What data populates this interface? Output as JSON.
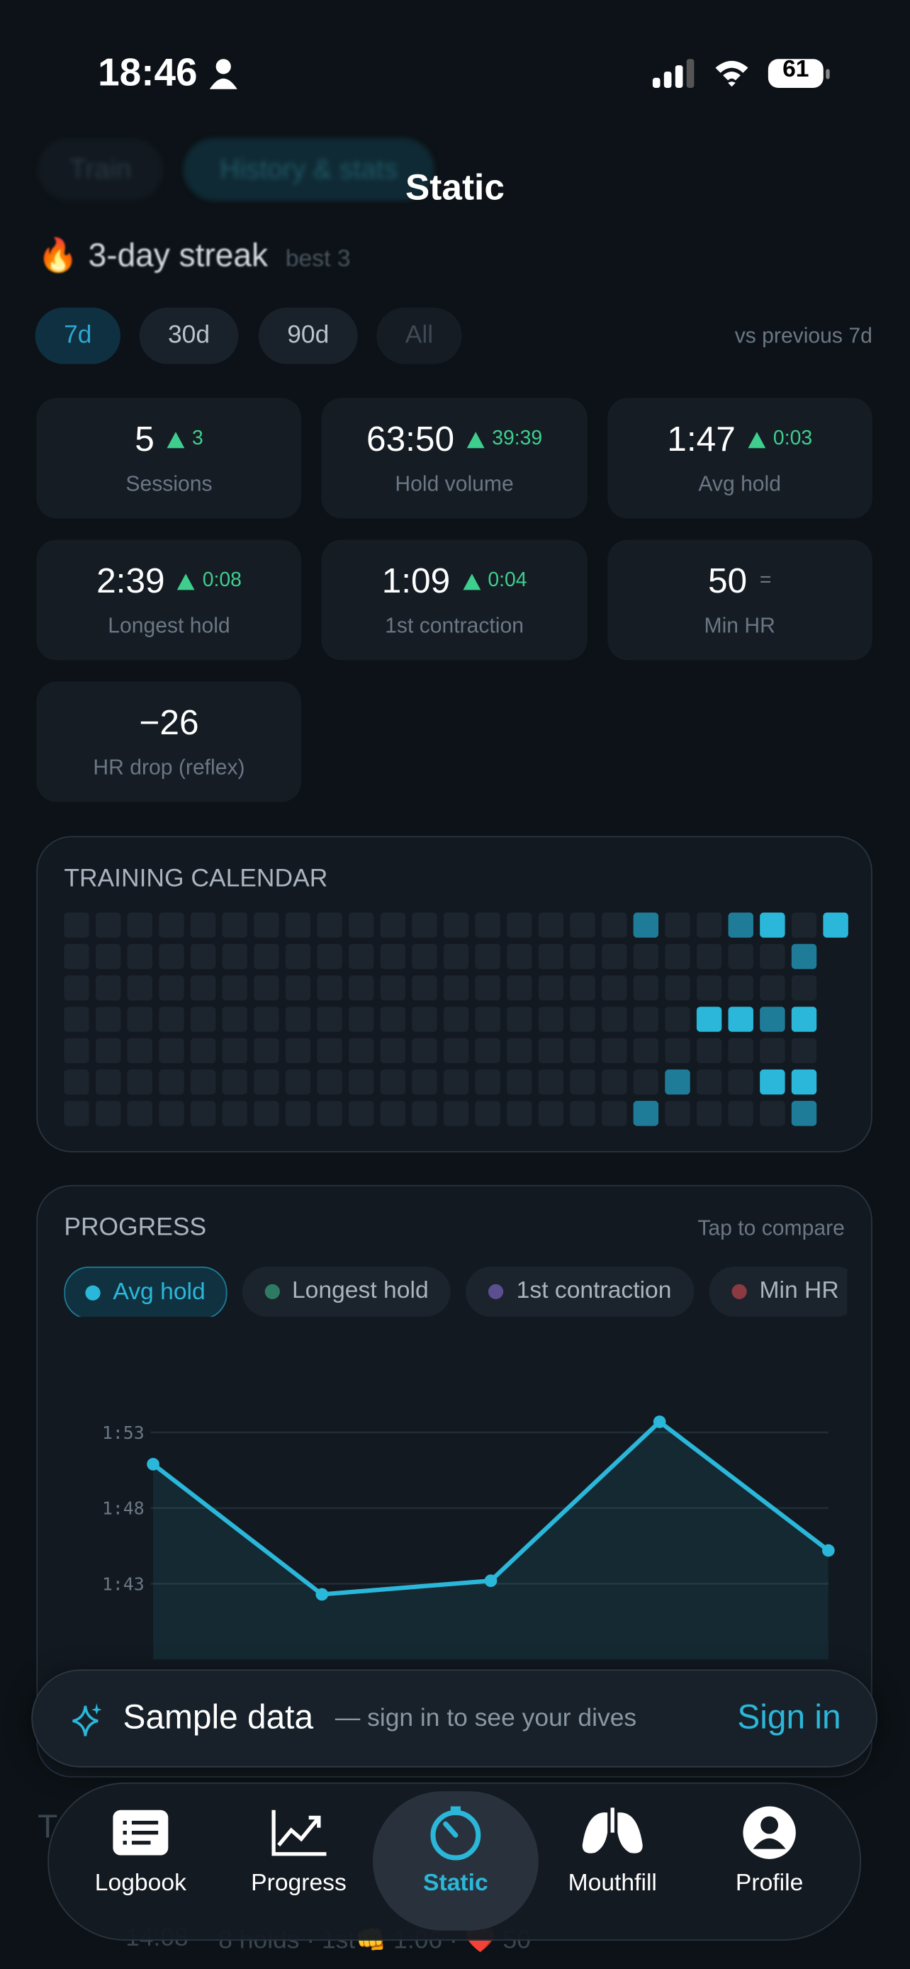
{
  "status_bar": {
    "time": "18:46",
    "battery": "61"
  },
  "header": {
    "tabs_behind": [
      "Train",
      "History & stats"
    ],
    "title": "Static"
  },
  "streak": {
    "icon": "🔥",
    "text": "3-day streak",
    "best": "best 3"
  },
  "range_filters": [
    "7d",
    "30d",
    "90d",
    "All"
  ],
  "comparison_note": "vs previous 7d",
  "stats": [
    {
      "value": "5",
      "delta": "3",
      "label": "Sessions"
    },
    {
      "value": "63:50",
      "delta": "39:39",
      "label": "Hold volume"
    },
    {
      "value": "1:47",
      "delta": "0:03",
      "label": "Avg hold"
    },
    {
      "value": "2:39",
      "delta": "0:08",
      "label": "Longest hold"
    },
    {
      "value": "1:09",
      "delta": "0:04",
      "label": "1st contraction"
    },
    {
      "value": "50",
      "delta": "=",
      "label": "Min HR"
    },
    {
      "value": "−26",
      "label": "HR drop (reflex)"
    }
  ],
  "calendar": {
    "title": "TRAINING CALENDAR",
    "levels": [
      [
        0,
        0,
        0,
        0,
        0,
        0,
        0,
        0,
        0,
        0,
        0,
        0,
        0,
        0,
        0,
        0,
        0,
        0,
        1,
        0,
        0,
        1,
        2,
        0,
        2
      ],
      [
        0,
        0,
        0,
        0,
        0,
        0,
        0,
        0,
        0,
        0,
        0,
        0,
        0,
        0,
        0,
        0,
        0,
        0,
        0,
        0,
        0,
        0,
        0,
        1
      ],
      [
        0,
        0,
        0,
        0,
        0,
        0,
        0,
        0,
        0,
        0,
        0,
        0,
        0,
        0,
        0,
        0,
        0,
        0,
        0,
        0,
        0,
        0,
        0,
        0
      ],
      [
        0,
        0,
        0,
        0,
        0,
        0,
        0,
        0,
        0,
        0,
        0,
        0,
        0,
        0,
        0,
        0,
        0,
        0,
        0,
        0,
        2,
        2,
        1,
        2
      ],
      [
        0,
        0,
        0,
        0,
        0,
        0,
        0,
        0,
        0,
        0,
        0,
        0,
        0,
        0,
        0,
        0,
        0,
        0,
        0,
        0,
        0,
        0,
        0,
        0
      ],
      [
        0,
        0,
        0,
        0,
        0,
        0,
        0,
        0,
        0,
        0,
        0,
        0,
        0,
        0,
        0,
        0,
        0,
        0,
        0,
        1,
        0,
        0,
        2,
        2
      ],
      [
        0,
        0,
        0,
        0,
        0,
        0,
        0,
        0,
        0,
        0,
        0,
        0,
        0,
        0,
        0,
        0,
        0,
        0,
        1,
        0,
        0,
        0,
        0,
        1
      ]
    ],
    "colors": [
      "#1c242d",
      "#1f7c98",
      "#2bb7da"
    ]
  },
  "progress": {
    "title": "PROGRESS",
    "hint": "Tap to compare",
    "metrics": [
      {
        "name": "Avg hold",
        "color": "#2bb7da"
      },
      {
        "name": "Longest hold",
        "color": "#2f7a62"
      },
      {
        "name": "1st contraction",
        "color": "#5b4f8f"
      },
      {
        "name": "Min HR",
        "color": "#8a3a40"
      }
    ],
    "chart": {
      "type": "line",
      "values": [
        110.9,
        102.3,
        103.2,
        113.7,
        105.2
      ],
      "color": "#2bb7da",
      "ylim": [
        98,
        115
      ],
      "yticks": [
        {
          "value": 103,
          "label": "1:43"
        },
        {
          "value": 108,
          "label": "1:48"
        },
        {
          "value": 113,
          "label": "1:53"
        }
      ],
      "grid": true
    }
  },
  "banner": {
    "title": "Sample data",
    "subtitle": "— sign in to see your dives",
    "action": "Sign in"
  },
  "behind_list": {
    "heading": "T",
    "time": "14:08",
    "summary": "8 holds · 1st👊 1:06 · ❤️ 50"
  },
  "tab_bar": [
    "Logbook",
    "Progress",
    "Static",
    "Mouthfill",
    "Profile"
  ]
}
